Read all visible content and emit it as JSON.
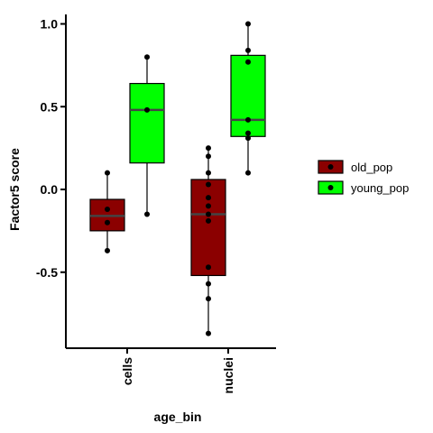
{
  "chart_data": {
    "type": "box",
    "title": "",
    "xlabel": "age_bin",
    "ylabel": "Factor5 score",
    "categories": [
      "cells",
      "nuclei"
    ],
    "ylim": [
      -0.9,
      1.05
    ],
    "yticks": [
      1.0,
      0.5,
      0.0,
      -0.5
    ],
    "ytick_labels": [
      "1.0",
      "0.5",
      "0.0",
      "-0.5"
    ],
    "legend_position": "right",
    "series": [
      {
        "name": "old_pop",
        "color": "#8b0000",
        "boxes": [
          {
            "category": "cells",
            "min": -0.37,
            "q1": -0.25,
            "median": -0.16,
            "q3": -0.06,
            "max": 0.1,
            "points": [
              0.1,
              -0.12,
              -0.2,
              -0.37
            ]
          },
          {
            "category": "nuclei",
            "min": -0.87,
            "q1": -0.52,
            "median": -0.15,
            "q3": 0.06,
            "max": 0.25,
            "points": [
              0.25,
              0.2,
              0.1,
              0.03,
              -0.05,
              -0.1,
              -0.15,
              -0.19,
              -0.47,
              -0.57,
              -0.66,
              -0.87
            ]
          }
        ]
      },
      {
        "name": "young_pop",
        "color": "#00ff00",
        "boxes": [
          {
            "category": "cells",
            "min": -0.15,
            "q1": 0.16,
            "median": 0.48,
            "q3": 0.64,
            "max": 0.8,
            "points": [
              0.8,
              0.48,
              -0.15
            ]
          },
          {
            "category": "nuclei",
            "min": 0.1,
            "q1": 0.32,
            "median": 0.42,
            "q3": 0.81,
            "max": 1.0,
            "points": [
              1.0,
              0.84,
              0.77,
              0.42,
              0.34,
              0.31,
              0.1
            ]
          }
        ]
      }
    ]
  }
}
